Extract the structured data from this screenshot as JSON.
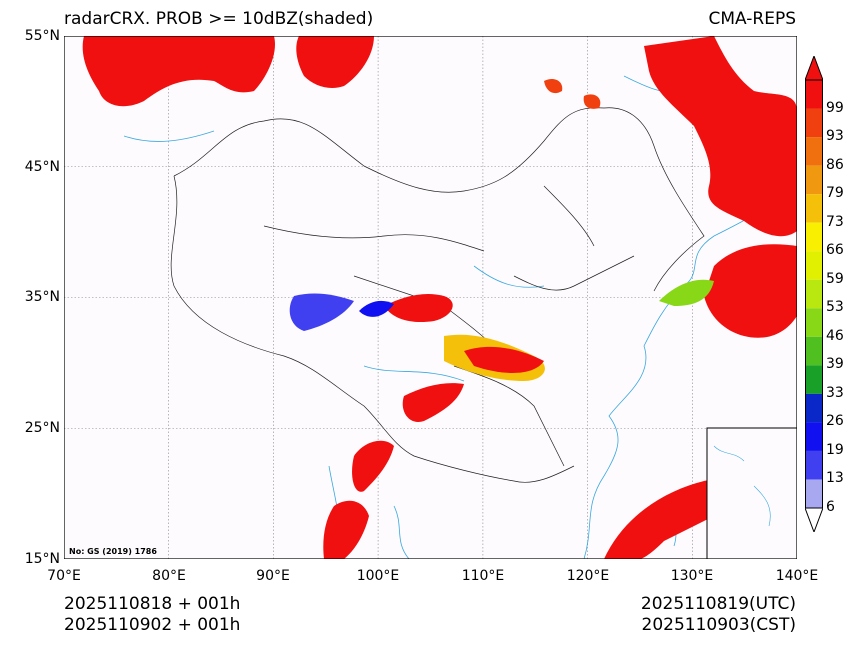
{
  "title": {
    "left": "radarCRX. PROB >= 10dBZ(shaded)",
    "right": "CMA-REPS"
  },
  "axes": {
    "lat_labels": [
      "55°N",
      "45°N",
      "35°N",
      "25°N",
      "15°N"
    ],
    "lon_labels": [
      "70°E",
      "80°E",
      "90°E",
      "100°E",
      "110°E",
      "120°E",
      "130°E",
      "140°E"
    ]
  },
  "map_note": "No: GS (2019) 1786",
  "footer": {
    "init_line1": "2025110818  +  001h",
    "init_line2": "2025110902  +  001h",
    "valid_utc": "2025110819(UTC)",
    "valid_cst": "2025110903(CST)"
  },
  "colorbar": {
    "labels": [
      "99",
      "93",
      "86",
      "79",
      "73",
      "66",
      "59",
      "53",
      "46",
      "39",
      "33",
      "26",
      "19",
      "13",
      "6"
    ],
    "colors": [
      "#f01010",
      "#f04010",
      "#f07010",
      "#f09810",
      "#f5c00a",
      "#f8f000",
      "#e0f000",
      "#b8e810",
      "#88d818",
      "#50c020",
      "#18a028",
      "#0a28c8",
      "#1010f0",
      "#4040f0",
      "#a8a8f0"
    ]
  }
}
